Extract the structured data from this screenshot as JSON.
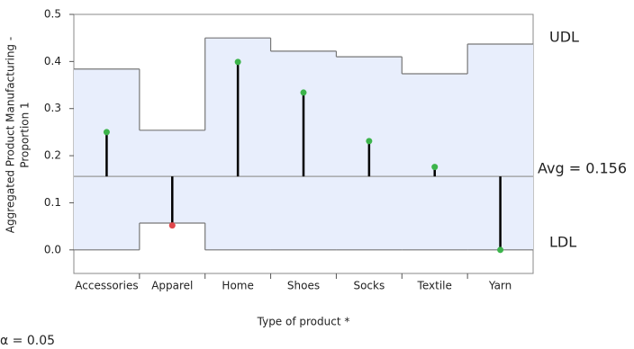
{
  "chart_data": {
    "type": "anom",
    "xlabel": "Type of product *",
    "ylabel_lines": [
      "Aggregated Product Manufacturing -",
      "Proportion 1"
    ],
    "categories": [
      "Accessories",
      "Apparel",
      "Home",
      "Shoes",
      "Socks",
      "Textile",
      "Yarn"
    ],
    "values": [
      0.25,
      0.052,
      0.399,
      0.334,
      0.231,
      0.176,
      0.0
    ],
    "udl": [
      0.384,
      0.254,
      0.45,
      0.422,
      0.41,
      0.374,
      0.437
    ],
    "ldl": [
      0.0,
      0.057,
      0.0,
      0.0,
      0.0,
      0.0,
      0.0
    ],
    "center": {
      "value": 0.156,
      "label": "Avg = 0.156"
    },
    "udl_label": "UDL",
    "ldl_label": "LDL",
    "alpha_label": "α = 0.05",
    "ylim": [
      -0.05,
      0.5
    ],
    "yticks": [
      {
        "value": 0,
        "label": "0.0"
      },
      0.1,
      0.2,
      0.3,
      0.4,
      0.5
    ],
    "in_color": "#3cb44b",
    "out_color": "#e0474c",
    "limit_fill": "#e8eefc"
  }
}
